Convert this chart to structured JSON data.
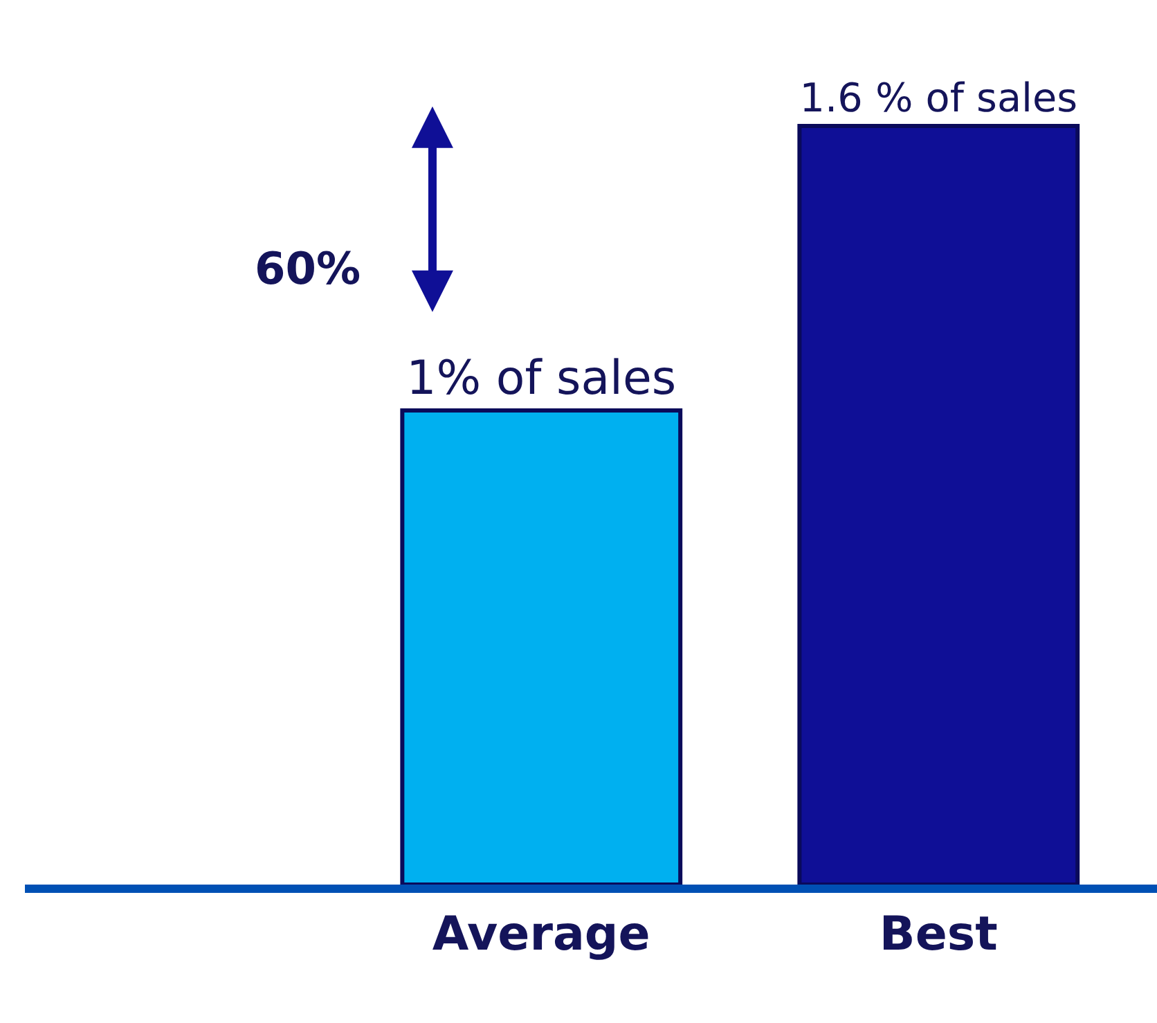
{
  "chart_data": {
    "type": "bar",
    "categories": [
      "Average",
      "Best"
    ],
    "values": [
      1,
      1.6
    ],
    "colors": [
      "#00b0f0",
      "#0f0f96"
    ],
    "value_labels": [
      "1% of sales",
      "1.6 % of sales"
    ],
    "annotations": [
      "60%"
    ]
  }
}
